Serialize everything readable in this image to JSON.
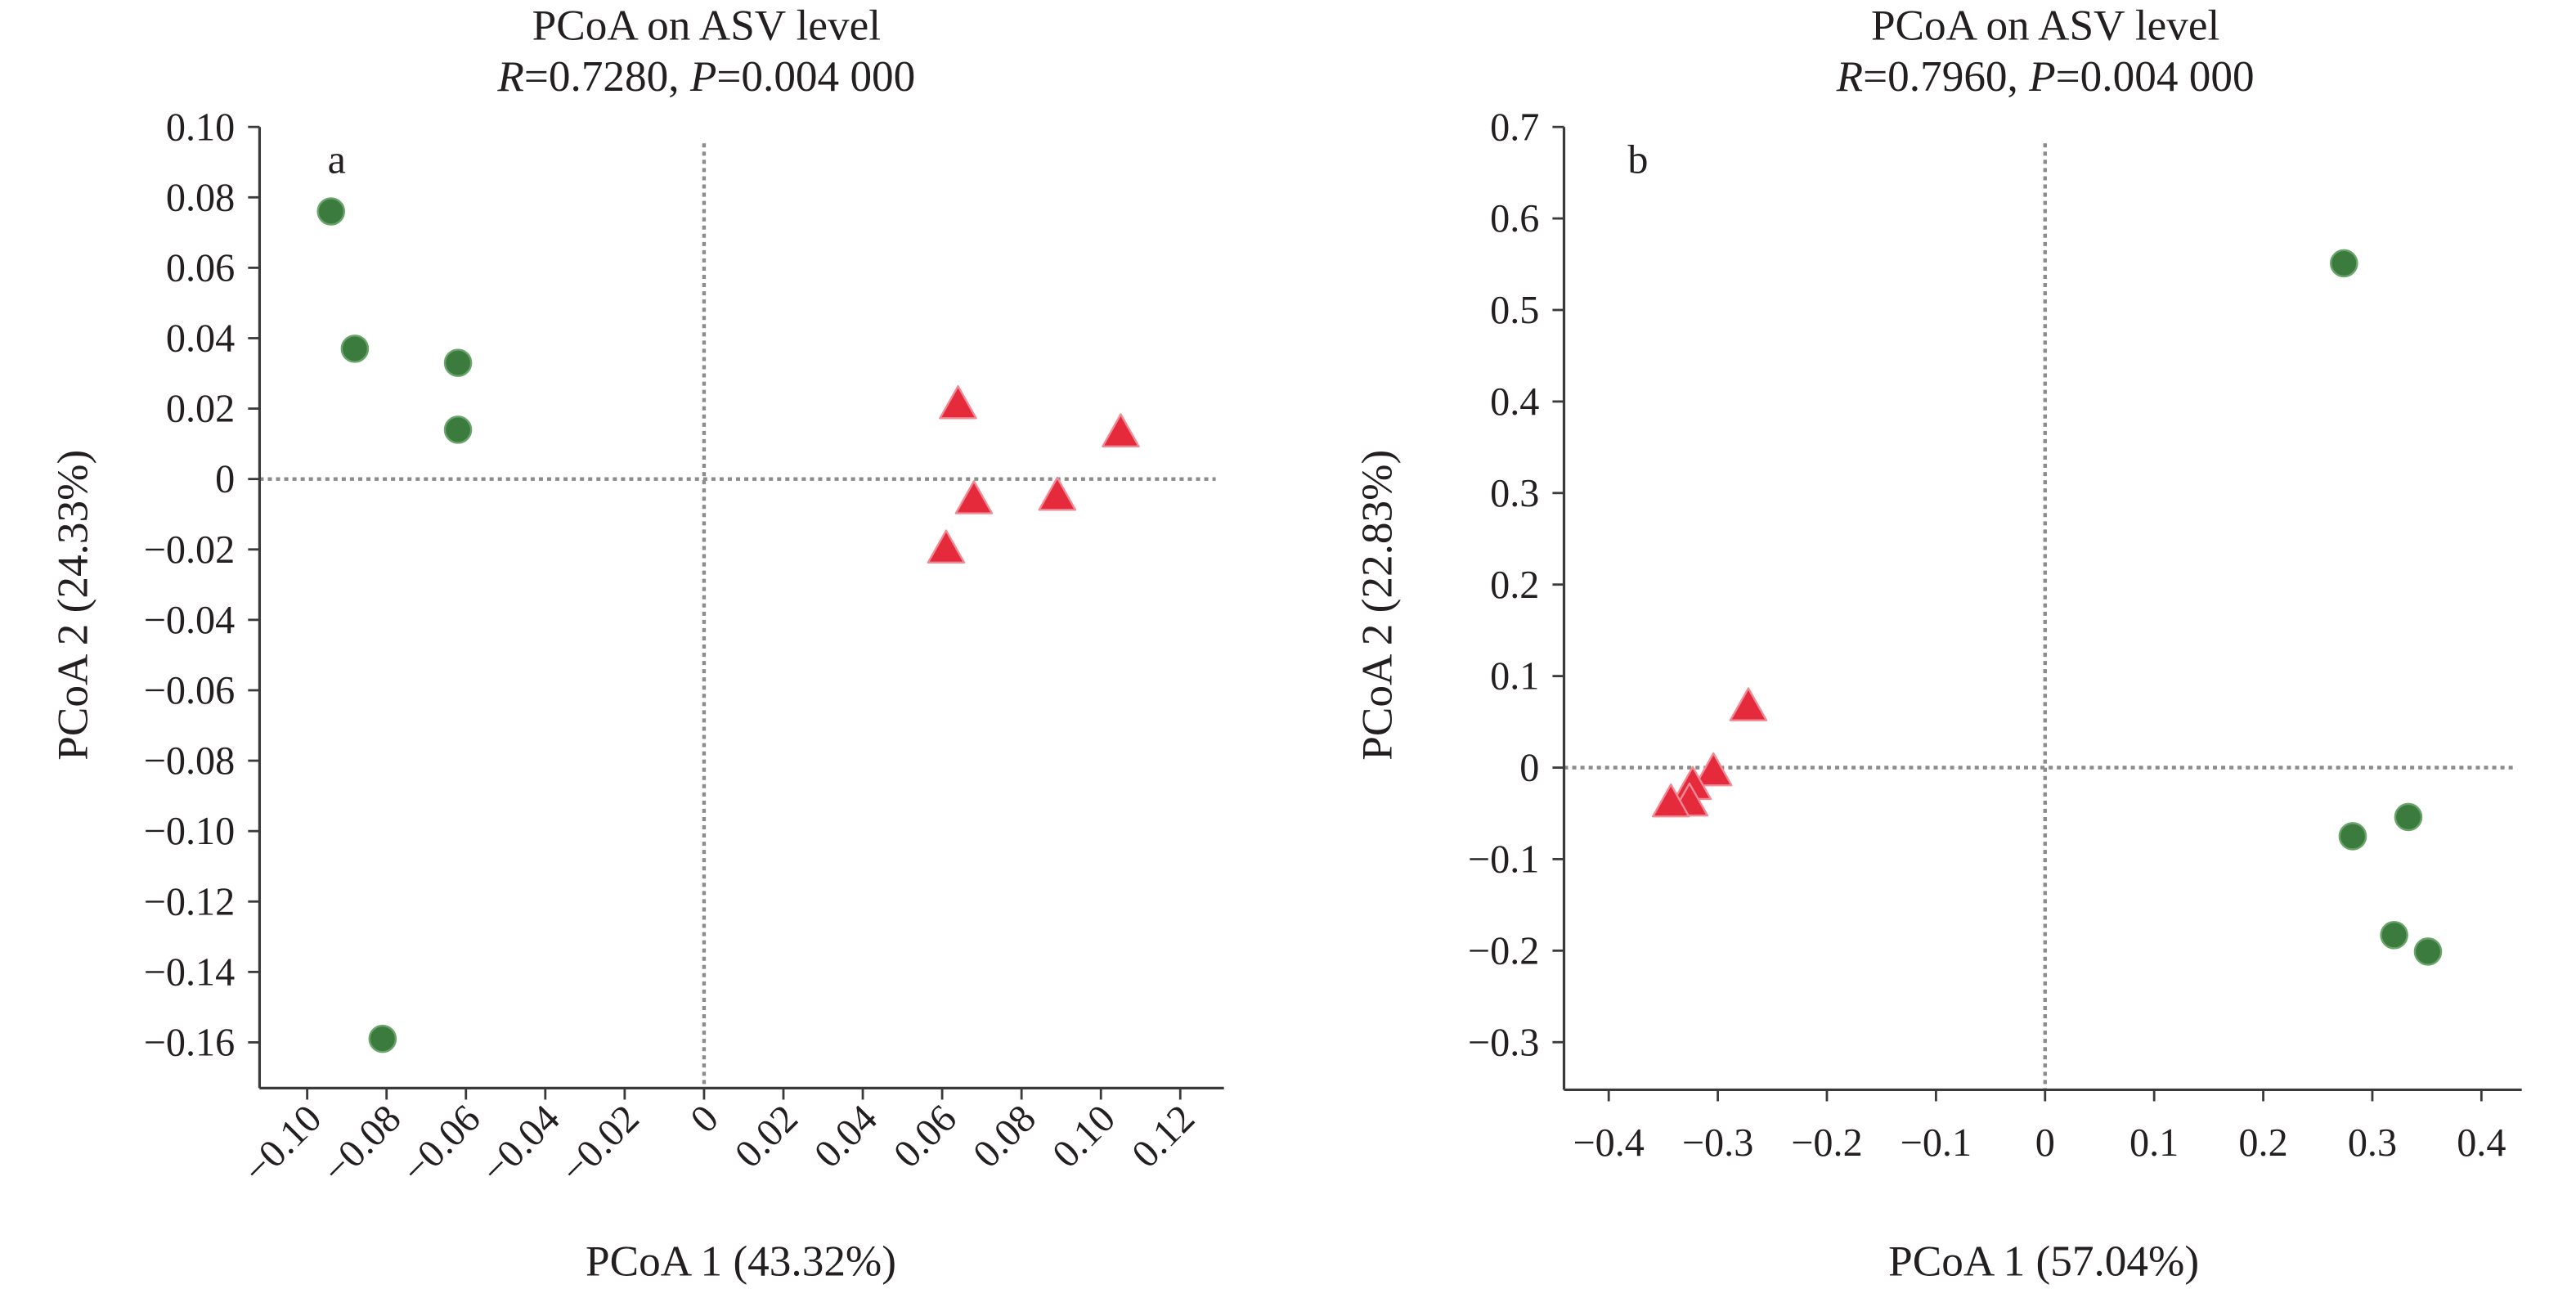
{
  "chart_data": [
    {
      "type": "scatter",
      "panel_label": "a",
      "title": "PCoA on ASV level",
      "subtitle": "R=0.7280, P=0.004 000",
      "xlabel": "PCoA 1 (43.32%)",
      "ylabel": "PCoA 2 (24.33%)",
      "xlim": [
        -0.112,
        0.131
      ],
      "ylim": [
        -0.173,
        0.1
      ],
      "xticks": [
        -0.1,
        -0.08,
        -0.06,
        -0.04,
        -0.02,
        0,
        0.02,
        0.04,
        0.06,
        0.08,
        0.1,
        0.12
      ],
      "xtick_labels": [
        "−0.10",
        "−0.08",
        "−0.06",
        "−0.04",
        "−0.02",
        "0",
        "0.02",
        "0.04",
        "0.06",
        "0.08",
        "0.10",
        "0.12"
      ],
      "yticks": [
        0.1,
        0.08,
        0.06,
        0.04,
        0.02,
        0,
        -0.02,
        -0.04,
        -0.06,
        -0.08,
        -0.1,
        -0.12,
        -0.14,
        -0.16
      ],
      "ytick_labels": [
        "0.10",
        "0.08",
        "0.06",
        "0.04",
        "0.02",
        "0",
        "−0.02",
        "−0.04",
        "−0.06",
        "−0.08",
        "−0.10",
        "−0.12",
        "−0.14",
        "−0.16"
      ],
      "grid": false,
      "reference_lines": {
        "x": 0,
        "y": 0
      },
      "reference_line_color": "#8c8c8c",
      "series": [
        {
          "marker": "circle",
          "color": "#3b7b3d",
          "edge_color": "#6aa46a",
          "points": [
            {
              "x": -0.094,
              "y": 0.076
            },
            {
              "x": -0.088,
              "y": 0.037
            },
            {
              "x": -0.062,
              "y": 0.033
            },
            {
              "x": -0.062,
              "y": 0.014
            },
            {
              "x": -0.081,
              "y": -0.159
            }
          ]
        },
        {
          "marker": "triangle",
          "color": "#e42a3b",
          "edge_color": "#f28a96",
          "points": [
            {
              "x": 0.064,
              "y": 0.021
            },
            {
              "x": 0.105,
              "y": 0.013
            },
            {
              "x": 0.068,
              "y": -0.006
            },
            {
              "x": 0.089,
              "y": -0.005
            },
            {
              "x": 0.061,
              "y": -0.02
            }
          ]
        }
      ]
    },
    {
      "type": "scatter",
      "panel_label": "b",
      "title": "PCoA on ASV level",
      "subtitle": "R=0.7960, P=0.004 000",
      "xlabel": "PCoA 1 (57.04%)",
      "ylabel": "PCoA 2 (22.83%)",
      "xlim": [
        -0.441,
        0.437
      ],
      "ylim": [
        -0.352,
        0.7
      ],
      "xticks": [
        -0.4,
        -0.3,
        -0.2,
        -0.1,
        0,
        0.1,
        0.2,
        0.3,
        0.4
      ],
      "xtick_labels": [
        "−0.4",
        "−0.3",
        "−0.2",
        "−0.1",
        "0",
        "0.1",
        "0.2",
        "0.3",
        "0.4"
      ],
      "yticks": [
        0.7,
        0.6,
        0.5,
        0.4,
        0.3,
        0.2,
        0.1,
        0,
        -0.1,
        -0.2,
        -0.3
      ],
      "ytick_labels": [
        "0.7",
        "0.6",
        "0.5",
        "0.4",
        "0.3",
        "0.2",
        "0.1",
        "0",
        "−0.1",
        "−0.2",
        "−0.3"
      ],
      "grid": false,
      "reference_lines": {
        "x": 0,
        "y": 0
      },
      "reference_line_color": "#8c8c8c",
      "series": [
        {
          "marker": "circle",
          "color": "#3b7b3d",
          "edge_color": "#6aa46a",
          "points": [
            {
              "x": 0.274,
              "y": 0.551
            },
            {
              "x": 0.282,
              "y": -0.075
            },
            {
              "x": 0.333,
              "y": -0.054
            },
            {
              "x": 0.32,
              "y": -0.183
            },
            {
              "x": 0.351,
              "y": -0.201
            }
          ]
        },
        {
          "marker": "triangle",
          "color": "#e42a3b",
          "edge_color": "#f28a96",
          "points": [
            {
              "x": -0.272,
              "y": 0.066
            },
            {
              "x": -0.304,
              "y": -0.005
            },
            {
              "x": -0.323,
              "y": -0.02
            },
            {
              "x": -0.326,
              "y": -0.038
            },
            {
              "x": -0.343,
              "y": -0.039
            }
          ]
        }
      ]
    }
  ]
}
